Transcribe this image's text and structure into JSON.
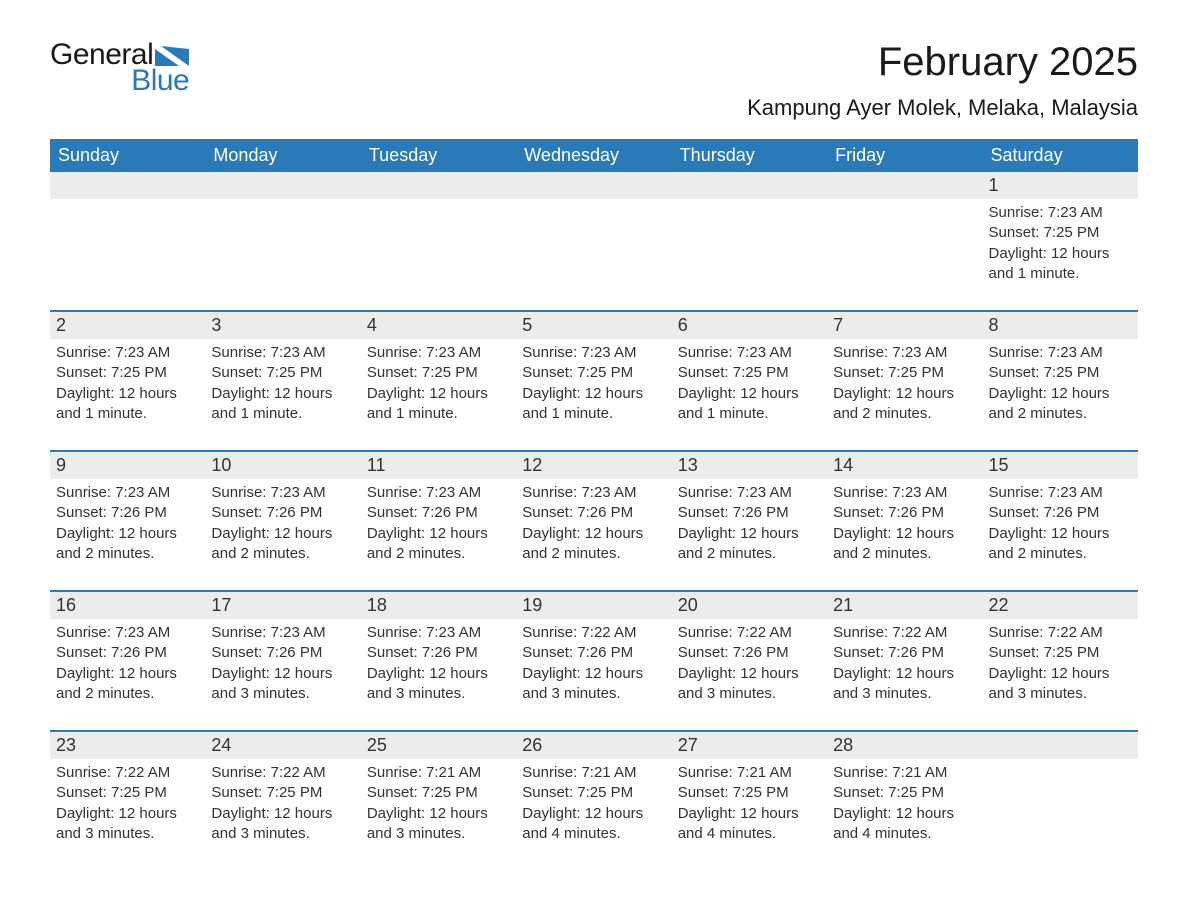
{
  "logo": {
    "text1": "General",
    "text2": "Blue",
    "tri_color": "#2a7ab8"
  },
  "title": "February 2025",
  "location": "Kampung Ayer Molek, Melaka, Malaysia",
  "colors": {
    "header_bg": "#2a7ab8",
    "header_text": "#ffffff",
    "daynum_bg": "#ececec",
    "body_text": "#333333",
    "rule": "#2a7ab8",
    "page_bg": "#ffffff"
  },
  "fonts": {
    "title_size_pt": 30,
    "location_size_pt": 16,
    "dayhead_size_pt": 13,
    "daynum_size_pt": 13,
    "detail_size_pt": 11
  },
  "day_headers": [
    "Sunday",
    "Monday",
    "Tuesday",
    "Wednesday",
    "Thursday",
    "Friday",
    "Saturday"
  ],
  "weeks": [
    [
      null,
      null,
      null,
      null,
      null,
      null,
      {
        "n": "1",
        "sr": "Sunrise: 7:23 AM",
        "ss": "Sunset: 7:25 PM",
        "dl": "Daylight: 12 hours and 1 minute."
      }
    ],
    [
      {
        "n": "2",
        "sr": "Sunrise: 7:23 AM",
        "ss": "Sunset: 7:25 PM",
        "dl": "Daylight: 12 hours and 1 minute."
      },
      {
        "n": "3",
        "sr": "Sunrise: 7:23 AM",
        "ss": "Sunset: 7:25 PM",
        "dl": "Daylight: 12 hours and 1 minute."
      },
      {
        "n": "4",
        "sr": "Sunrise: 7:23 AM",
        "ss": "Sunset: 7:25 PM",
        "dl": "Daylight: 12 hours and 1 minute."
      },
      {
        "n": "5",
        "sr": "Sunrise: 7:23 AM",
        "ss": "Sunset: 7:25 PM",
        "dl": "Daylight: 12 hours and 1 minute."
      },
      {
        "n": "6",
        "sr": "Sunrise: 7:23 AM",
        "ss": "Sunset: 7:25 PM",
        "dl": "Daylight: 12 hours and 1 minute."
      },
      {
        "n": "7",
        "sr": "Sunrise: 7:23 AM",
        "ss": "Sunset: 7:25 PM",
        "dl": "Daylight: 12 hours and 2 minutes."
      },
      {
        "n": "8",
        "sr": "Sunrise: 7:23 AM",
        "ss": "Sunset: 7:25 PM",
        "dl": "Daylight: 12 hours and 2 minutes."
      }
    ],
    [
      {
        "n": "9",
        "sr": "Sunrise: 7:23 AM",
        "ss": "Sunset: 7:26 PM",
        "dl": "Daylight: 12 hours and 2 minutes."
      },
      {
        "n": "10",
        "sr": "Sunrise: 7:23 AM",
        "ss": "Sunset: 7:26 PM",
        "dl": "Daylight: 12 hours and 2 minutes."
      },
      {
        "n": "11",
        "sr": "Sunrise: 7:23 AM",
        "ss": "Sunset: 7:26 PM",
        "dl": "Daylight: 12 hours and 2 minutes."
      },
      {
        "n": "12",
        "sr": "Sunrise: 7:23 AM",
        "ss": "Sunset: 7:26 PM",
        "dl": "Daylight: 12 hours and 2 minutes."
      },
      {
        "n": "13",
        "sr": "Sunrise: 7:23 AM",
        "ss": "Sunset: 7:26 PM",
        "dl": "Daylight: 12 hours and 2 minutes."
      },
      {
        "n": "14",
        "sr": "Sunrise: 7:23 AM",
        "ss": "Sunset: 7:26 PM",
        "dl": "Daylight: 12 hours and 2 minutes."
      },
      {
        "n": "15",
        "sr": "Sunrise: 7:23 AM",
        "ss": "Sunset: 7:26 PM",
        "dl": "Daylight: 12 hours and 2 minutes."
      }
    ],
    [
      {
        "n": "16",
        "sr": "Sunrise: 7:23 AM",
        "ss": "Sunset: 7:26 PM",
        "dl": "Daylight: 12 hours and 2 minutes."
      },
      {
        "n": "17",
        "sr": "Sunrise: 7:23 AM",
        "ss": "Sunset: 7:26 PM",
        "dl": "Daylight: 12 hours and 3 minutes."
      },
      {
        "n": "18",
        "sr": "Sunrise: 7:23 AM",
        "ss": "Sunset: 7:26 PM",
        "dl": "Daylight: 12 hours and 3 minutes."
      },
      {
        "n": "19",
        "sr": "Sunrise: 7:22 AM",
        "ss": "Sunset: 7:26 PM",
        "dl": "Daylight: 12 hours and 3 minutes."
      },
      {
        "n": "20",
        "sr": "Sunrise: 7:22 AM",
        "ss": "Sunset: 7:26 PM",
        "dl": "Daylight: 12 hours and 3 minutes."
      },
      {
        "n": "21",
        "sr": "Sunrise: 7:22 AM",
        "ss": "Sunset: 7:26 PM",
        "dl": "Daylight: 12 hours and 3 minutes."
      },
      {
        "n": "22",
        "sr": "Sunrise: 7:22 AM",
        "ss": "Sunset: 7:25 PM",
        "dl": "Daylight: 12 hours and 3 minutes."
      }
    ],
    [
      {
        "n": "23",
        "sr": "Sunrise: 7:22 AM",
        "ss": "Sunset: 7:25 PM",
        "dl": "Daylight: 12 hours and 3 minutes."
      },
      {
        "n": "24",
        "sr": "Sunrise: 7:22 AM",
        "ss": "Sunset: 7:25 PM",
        "dl": "Daylight: 12 hours and 3 minutes."
      },
      {
        "n": "25",
        "sr": "Sunrise: 7:21 AM",
        "ss": "Sunset: 7:25 PM",
        "dl": "Daylight: 12 hours and 3 minutes."
      },
      {
        "n": "26",
        "sr": "Sunrise: 7:21 AM",
        "ss": "Sunset: 7:25 PM",
        "dl": "Daylight: 12 hours and 4 minutes."
      },
      {
        "n": "27",
        "sr": "Sunrise: 7:21 AM",
        "ss": "Sunset: 7:25 PM",
        "dl": "Daylight: 12 hours and 4 minutes."
      },
      {
        "n": "28",
        "sr": "Sunrise: 7:21 AM",
        "ss": "Sunset: 7:25 PM",
        "dl": "Daylight: 12 hours and 4 minutes."
      },
      null
    ]
  ]
}
